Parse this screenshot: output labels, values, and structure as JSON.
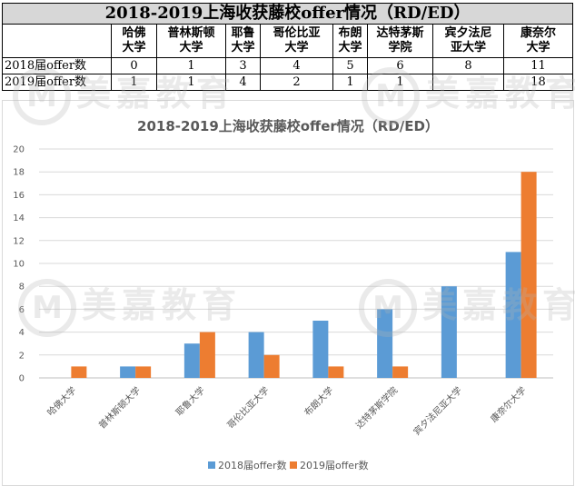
{
  "table": {
    "title": "2018-2019上海收获藤校offer情况（RD/ED）",
    "headers": [
      [
        "哈佛",
        "大学"
      ],
      [
        "普林斯顿",
        "大学"
      ],
      [
        "耶鲁",
        "大学"
      ],
      [
        "哥伦比亚",
        "大学"
      ],
      [
        "布朗",
        "大学"
      ],
      [
        "达特茅斯",
        "学院"
      ],
      [
        "宾夕法尼",
        "亚大学"
      ],
      [
        "康奈尔",
        "大学"
      ]
    ],
    "rows": [
      {
        "label": "2018届offer数",
        "cells": [
          "0",
          "1",
          "3",
          "4",
          "5",
          "6",
          "8",
          "11"
        ]
      },
      {
        "label": "2019届offer数",
        "cells": [
          "1",
          "1",
          "4",
          "2",
          "1",
          "1",
          "",
          "18"
        ]
      }
    ]
  },
  "watermark": {
    "logo_letter": "M",
    "text": "美嘉教育"
  },
  "chart_data": {
    "type": "bar",
    "title": "2018-2019上海收获藤校offer情况（RD/ED）",
    "categories": [
      "哈佛大学",
      "普林斯顿大学",
      "耶鲁大学",
      "哥伦比亚大学",
      "布朗大学",
      "达特茅斯学院",
      "宾夕法尼亚大学",
      "康奈尔大学"
    ],
    "series": [
      {
        "name": "2018届offer数",
        "color": "#5b9bd5",
        "values": [
          0,
          1,
          3,
          4,
          5,
          6,
          8,
          11
        ]
      },
      {
        "name": "2019届offer数",
        "color": "#ed7d31",
        "values": [
          1,
          1,
          4,
          2,
          1,
          1,
          0,
          18
        ]
      }
    ],
    "ylim": [
      0,
      20
    ],
    "yticks": [
      0,
      2,
      4,
      6,
      8,
      10,
      12,
      14,
      16,
      18,
      20
    ],
    "grid": true,
    "legend": "bottom"
  }
}
